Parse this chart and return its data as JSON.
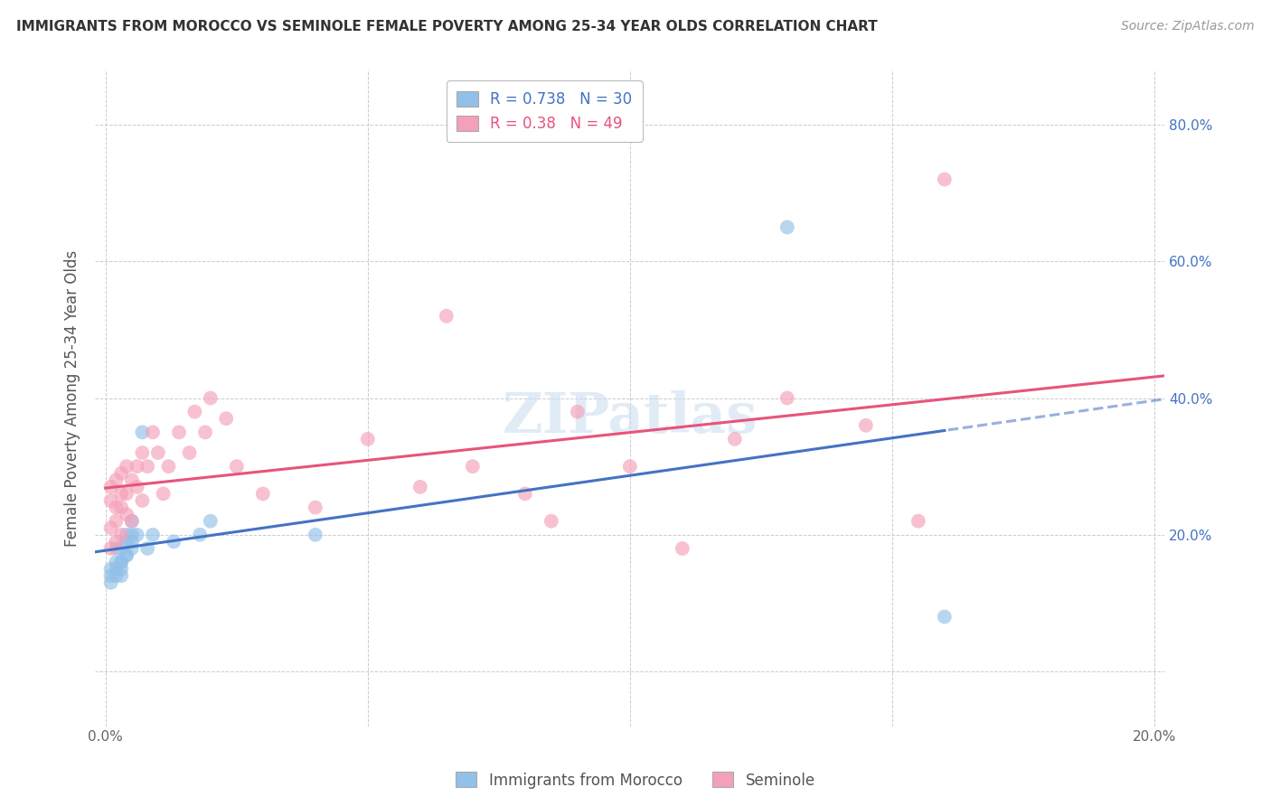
{
  "title": "IMMIGRANTS FROM MOROCCO VS SEMINOLE FEMALE POVERTY AMONG 25-34 YEAR OLDS CORRELATION CHART",
  "source": "Source: ZipAtlas.com",
  "ylabel": "Female Poverty Among 25-34 Year Olds",
  "xlabel_blue": "Immigrants from Morocco",
  "xlabel_pink": "Seminole",
  "blue_R": 0.738,
  "blue_N": 30,
  "pink_R": 0.38,
  "pink_N": 49,
  "xlim": [
    -0.002,
    0.202
  ],
  "ylim": [
    -0.08,
    0.88
  ],
  "yticks": [
    0.0,
    0.2,
    0.4,
    0.6,
    0.8
  ],
  "xticks": [
    0.0,
    0.05,
    0.1,
    0.15,
    0.2
  ],
  "blue_color": "#92C0E8",
  "pink_color": "#F4A0B8",
  "blue_line_color": "#4472C4",
  "pink_line_color": "#E8537A",
  "watermark_color": "#C8DCF0",
  "background_color": "#FFFFFF",
  "grid_color": "#CCCCCC",
  "blue_scatter_x": [
    0.001,
    0.001,
    0.001,
    0.002,
    0.002,
    0.002,
    0.002,
    0.003,
    0.003,
    0.003,
    0.003,
    0.003,
    0.004,
    0.004,
    0.004,
    0.004,
    0.005,
    0.005,
    0.005,
    0.005,
    0.006,
    0.007,
    0.008,
    0.009,
    0.013,
    0.018,
    0.02,
    0.04,
    0.13,
    0.16
  ],
  "blue_scatter_y": [
    0.14,
    0.15,
    0.13,
    0.15,
    0.16,
    0.14,
    0.18,
    0.15,
    0.16,
    0.14,
    0.18,
    0.16,
    0.17,
    0.19,
    0.17,
    0.2,
    0.19,
    0.2,
    0.18,
    0.22,
    0.2,
    0.35,
    0.18,
    0.2,
    0.19,
    0.2,
    0.22,
    0.2,
    0.65,
    0.08
  ],
  "pink_scatter_x": [
    0.001,
    0.001,
    0.001,
    0.001,
    0.002,
    0.002,
    0.002,
    0.002,
    0.003,
    0.003,
    0.003,
    0.003,
    0.004,
    0.004,
    0.004,
    0.005,
    0.005,
    0.006,
    0.006,
    0.007,
    0.007,
    0.008,
    0.009,
    0.01,
    0.011,
    0.012,
    0.014,
    0.016,
    0.017,
    0.019,
    0.02,
    0.023,
    0.025,
    0.03,
    0.04,
    0.05,
    0.06,
    0.065,
    0.07,
    0.08,
    0.085,
    0.09,
    0.1,
    0.11,
    0.12,
    0.13,
    0.145,
    0.155,
    0.16
  ],
  "pink_scatter_y": [
    0.25,
    0.27,
    0.21,
    0.18,
    0.24,
    0.28,
    0.22,
    0.19,
    0.26,
    0.29,
    0.24,
    0.2,
    0.3,
    0.26,
    0.23,
    0.28,
    0.22,
    0.27,
    0.3,
    0.32,
    0.25,
    0.3,
    0.35,
    0.32,
    0.26,
    0.3,
    0.35,
    0.32,
    0.38,
    0.35,
    0.4,
    0.37,
    0.3,
    0.26,
    0.24,
    0.34,
    0.27,
    0.52,
    0.3,
    0.26,
    0.22,
    0.38,
    0.3,
    0.18,
    0.34,
    0.4,
    0.36,
    0.22,
    0.72
  ],
  "title_fontsize": 11,
  "source_fontsize": 10,
  "tick_fontsize": 11,
  "ylabel_fontsize": 12
}
